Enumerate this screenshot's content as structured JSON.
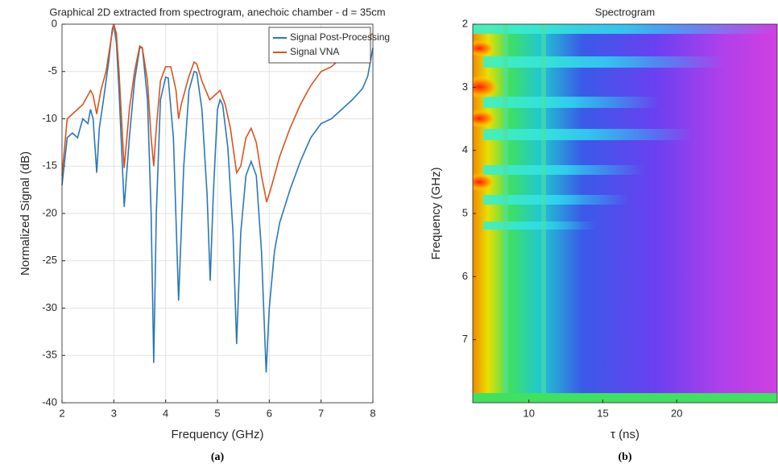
{
  "chart_data": [
    {
      "type": "line",
      "title": "Graphical 2D extracted from spectrogram, anechoic chamber - d = 35cm",
      "xlabel": "Frequency (GHz)",
      "ylabel": "Normalized Signal (dB)",
      "caption": "(a)",
      "xlim": [
        2,
        8
      ],
      "xticks": [
        2,
        3,
        4,
        5,
        6,
        7,
        8
      ],
      "ylim": [
        -40,
        0
      ],
      "yticks": [
        -40,
        -35,
        -30,
        -25,
        -20,
        -15,
        -10,
        -5,
        0
      ],
      "grid": true,
      "legend": "upper right",
      "series": [
        {
          "name": "Signal Post-Processing",
          "color": "#2a78b8",
          "x": [
            2.0,
            2.1,
            2.2,
            2.3,
            2.4,
            2.5,
            2.55,
            2.6,
            2.67,
            2.72,
            2.8,
            2.9,
            2.97,
            3.0,
            3.05,
            3.1,
            3.2,
            3.3,
            3.4,
            3.5,
            3.55,
            3.65,
            3.72,
            3.77,
            3.82,
            3.9,
            4.0,
            4.05,
            4.15,
            4.25,
            4.35,
            4.45,
            4.55,
            4.6,
            4.7,
            4.8,
            4.86,
            4.92,
            5.0,
            5.05,
            5.1,
            5.2,
            5.3,
            5.37,
            5.45,
            5.55,
            5.65,
            5.75,
            5.85,
            5.94,
            6.0,
            6.1,
            6.2,
            6.4,
            6.6,
            6.8,
            7.0,
            7.2,
            7.4,
            7.6,
            7.8,
            7.9,
            7.95,
            8.0
          ],
          "values": [
            -17,
            -12,
            -11.5,
            -12,
            -10,
            -10.5,
            -9,
            -10,
            -15.7,
            -11,
            -8,
            -4,
            -0.5,
            0,
            -2,
            -7,
            -19.3,
            -12,
            -6,
            -2.5,
            -2.5,
            -8,
            -20,
            -35.8,
            -20,
            -8,
            -5.6,
            -5.7,
            -12,
            -29.2,
            -15,
            -7,
            -5,
            -5.1,
            -9,
            -18,
            -27.1,
            -18,
            -9,
            -8,
            -8.5,
            -13,
            -22,
            -33.8,
            -22,
            -16,
            -14.5,
            -16,
            -24,
            -36.8,
            -30,
            -24,
            -21,
            -17.5,
            -14.5,
            -12,
            -10.5,
            -10,
            -9,
            -8,
            -6.8,
            -5.5,
            -4,
            -2.5
          ]
        },
        {
          "name": "Signal VNA",
          "color": "#d9541e",
          "x": [
            2.0,
            2.1,
            2.2,
            2.3,
            2.4,
            2.5,
            2.55,
            2.6,
            2.67,
            2.75,
            2.85,
            2.95,
            3.0,
            3.05,
            3.1,
            3.2,
            3.3,
            3.4,
            3.5,
            3.55,
            3.65,
            3.72,
            3.77,
            3.82,
            3.9,
            4.0,
            4.1,
            4.2,
            4.25,
            4.3,
            4.45,
            4.55,
            4.6,
            4.7,
            4.85,
            4.95,
            5.05,
            5.15,
            5.25,
            5.37,
            5.45,
            5.55,
            5.65,
            5.75,
            5.85,
            5.95,
            6.05,
            6.2,
            6.4,
            6.6,
            6.8,
            7.0,
            7.2,
            7.4,
            7.6,
            7.8,
            8.0
          ],
          "values": [
            -16,
            -10,
            -9.5,
            -9,
            -8.5,
            -7.5,
            -7,
            -7.5,
            -9.5,
            -7,
            -5,
            -1.5,
            0,
            -1,
            -5,
            -15.2,
            -9,
            -5,
            -2.3,
            -2.5,
            -6,
            -12,
            -15,
            -11,
            -6,
            -4.5,
            -4.5,
            -7,
            -10,
            -8.5,
            -5.5,
            -4,
            -4.2,
            -6,
            -8,
            -7.5,
            -7,
            -8.5,
            -11,
            -15.7,
            -15,
            -12,
            -11,
            -12.5,
            -16,
            -18.8,
            -17,
            -14,
            -11,
            -8.5,
            -6.5,
            -5,
            -4.5,
            -3.5,
            -2.5,
            -1.5,
            -1
          ]
        }
      ]
    },
    {
      "type": "heatmap",
      "title": "Spectrogram",
      "xlabel": "τ (ns)",
      "ylabel": "Frequency (GHz)",
      "caption": "(b)",
      "xlim": [
        6.2,
        26.8
      ],
      "xticks": [
        10,
        15,
        20
      ],
      "ylim": [
        8,
        2
      ],
      "yticks": [
        2,
        3,
        4,
        5,
        6,
        7
      ]
    }
  ]
}
